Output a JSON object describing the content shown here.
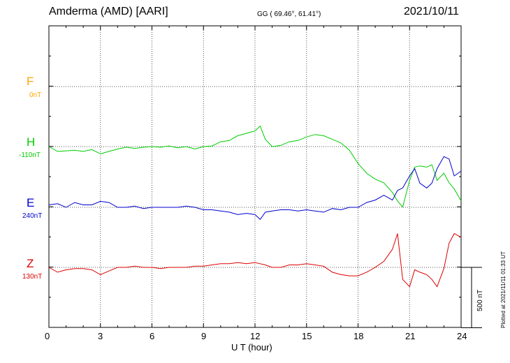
{
  "header": {
    "station": "Amderma (AMD)  [AARI]",
    "coords": "GG ( 69.46°,  61.41°)",
    "date": "2021/10/11"
  },
  "channels": [
    {
      "name": "F",
      "baseline": "0nT",
      "color": "#ffa500"
    },
    {
      "name": "H",
      "baseline": "-110nT",
      "color": "#00cc00"
    },
    {
      "name": "E",
      "baseline": "240nT",
      "color": "#0000cc"
    },
    {
      "name": "Z",
      "baseline": "130nT",
      "color": "#dd0000"
    }
  ],
  "footer": {
    "plotted": "Plotted at 2021/11/11 01:33 UT",
    "scale_label": "500 nT"
  },
  "chart_data": {
    "type": "line",
    "title": "Amderma (AMD)  [AARI]",
    "xlabel": "U T (hour)",
    "xlim": [
      0,
      24
    ],
    "xticks": [
      0,
      3,
      6,
      9,
      12,
      15,
      18,
      21,
      24
    ],
    "ylabel": "",
    "scale_bar_nT": 500,
    "grid": true,
    "series": [
      {
        "name": "H",
        "color": "#00cc00",
        "x": [
          0,
          0.5,
          1,
          1.5,
          2,
          2.5,
          3,
          3.5,
          4,
          4.5,
          5,
          5.5,
          6,
          6.5,
          7,
          7.5,
          8,
          8.5,
          9,
          9.5,
          10,
          10.5,
          11,
          11.5,
          12,
          12.3,
          12.6,
          13,
          13.5,
          14,
          14.5,
          15,
          15.5,
          16,
          16.5,
          17,
          17.5,
          18,
          18.5,
          19,
          19.5,
          20,
          20.3,
          20.6,
          21,
          21.3,
          21.6,
          22,
          22.3,
          22.6,
          23,
          23.3,
          23.6,
          24
        ],
        "y": [
          0,
          -40,
          -35,
          -30,
          -40,
          -25,
          -60,
          -40,
          -20,
          -5,
          -15,
          -5,
          0,
          -5,
          5,
          -10,
          0,
          -20,
          0,
          5,
          40,
          50,
          90,
          110,
          130,
          170,
          60,
          0,
          10,
          40,
          50,
          80,
          100,
          90,
          60,
          30,
          -30,
          -140,
          -220,
          -270,
          -300,
          -380,
          -450,
          -500,
          -280,
          -170,
          -160,
          -170,
          -150,
          -280,
          -220,
          -300,
          -350,
          -450
        ]
      },
      {
        "name": "E",
        "color": "#0000cc",
        "x": [
          0,
          0.5,
          1,
          1.5,
          2,
          2.5,
          3,
          3.5,
          4,
          4.5,
          5,
          5.5,
          6,
          6.5,
          7,
          7.5,
          8,
          8.5,
          9,
          9.5,
          10,
          10.5,
          11,
          11.5,
          12,
          12.3,
          12.6,
          13,
          13.5,
          14,
          14.5,
          15,
          15.5,
          16,
          16.5,
          17,
          17.5,
          18,
          18.5,
          19,
          19.5,
          20,
          20.3,
          20.6,
          21,
          21.3,
          21.6,
          22,
          22.3,
          22.6,
          23,
          23.3,
          23.6,
          24
        ],
        "y": [
          20,
          30,
          0,
          40,
          20,
          20,
          50,
          40,
          0,
          0,
          10,
          -10,
          0,
          0,
          0,
          0,
          10,
          0,
          -20,
          -20,
          -30,
          -40,
          -60,
          -50,
          -60,
          -100,
          -40,
          -30,
          -20,
          -20,
          -30,
          -20,
          -30,
          -40,
          -10,
          -20,
          0,
          0,
          40,
          60,
          100,
          60,
          140,
          160,
          260,
          320,
          200,
          160,
          200,
          320,
          420,
          400,
          260,
          300
        ]
      },
      {
        "name": "Z",
        "color": "#dd0000",
        "x": [
          0,
          0.5,
          1,
          1.5,
          2,
          2.5,
          3,
          3.5,
          4,
          4.5,
          5,
          5.5,
          6,
          6.5,
          7,
          7.5,
          8,
          8.5,
          9,
          9.5,
          10,
          10.5,
          11,
          11.5,
          12,
          12.3,
          12.6,
          13,
          13.5,
          14,
          14.5,
          15,
          15.5,
          16,
          16.5,
          17,
          17.5,
          18,
          18.5,
          19,
          19.5,
          20,
          20.3,
          20.6,
          21,
          21.3,
          21.6,
          22,
          22.3,
          22.6,
          23,
          23.3,
          23.6,
          24
        ],
        "y": [
          0,
          -40,
          -20,
          -10,
          -10,
          -20,
          -60,
          -30,
          0,
          0,
          10,
          0,
          0,
          -10,
          0,
          0,
          0,
          10,
          10,
          20,
          30,
          30,
          40,
          30,
          40,
          30,
          20,
          0,
          0,
          20,
          20,
          30,
          20,
          10,
          -40,
          -60,
          -70,
          -70,
          -40,
          0,
          50,
          150,
          280,
          -100,
          -160,
          -20,
          -40,
          -60,
          -100,
          -160,
          -10,
          200,
          280,
          250
        ]
      }
    ]
  }
}
